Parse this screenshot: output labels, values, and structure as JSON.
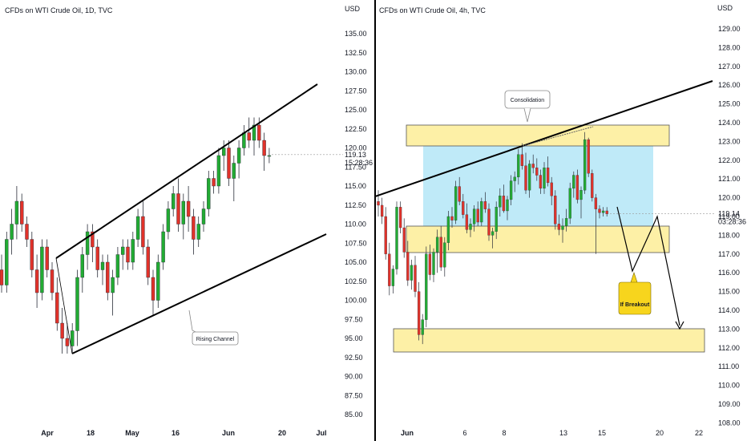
{
  "chart_data": [
    {
      "type": "candlestick",
      "title": "CFDs on WTI Crude Oil, 1D, TVC",
      "currency": "USD",
      "y_ticks": [
        "135.00",
        "132.50",
        "130.00",
        "127.50",
        "125.00",
        "122.50",
        "120.00",
        "117.50",
        "115.00",
        "112.50",
        "110.00",
        "107.50",
        "105.00",
        "102.50",
        "100.00",
        "97.50",
        "95.00",
        "92.50",
        "90.00",
        "87.50",
        "85.00"
      ],
      "x_ticks": [
        "Apr",
        "18",
        "May",
        "16",
        "Jun",
        "20",
        "Jul"
      ],
      "last_price": "119.13",
      "countdown": "15:28:36",
      "annotation": "Rising Channel",
      "candles": [
        [
          104,
          106,
          101,
          102
        ],
        [
          102,
          109,
          101,
          108
        ],
        [
          108,
          112,
          106,
          110
        ],
        [
          110,
          115,
          108,
          113
        ],
        [
          113,
          114,
          109,
          110
        ],
        [
          110,
          111,
          107,
          108
        ],
        [
          108,
          109,
          103,
          104
        ],
        [
          104,
          106,
          99,
          101
        ],
        [
          101,
          108,
          100,
          107
        ],
        [
          107,
          108,
          103,
          104
        ],
        [
          104,
          105,
          100,
          101
        ],
        [
          101,
          103,
          96,
          97
        ],
        [
          97,
          99,
          93,
          95
        ],
        [
          95,
          97,
          93,
          94
        ],
        [
          94,
          97,
          93,
          96
        ],
        [
          96,
          104,
          94,
          103
        ],
        [
          103,
          107,
          101,
          106
        ],
        [
          106,
          110,
          104,
          109
        ],
        [
          109,
          110,
          105,
          107
        ],
        [
          107,
          108,
          103,
          104
        ],
        [
          104,
          106,
          102,
          105
        ],
        [
          105,
          106,
          100,
          101
        ],
        [
          101,
          104,
          98,
          103
        ],
        [
          103,
          107,
          102,
          106
        ],
        [
          106,
          108,
          104,
          107
        ],
        [
          107,
          108,
          104,
          105
        ],
        [
          105,
          109,
          104,
          108
        ],
        [
          108,
          112,
          107,
          111
        ],
        [
          111,
          113,
          106,
          107
        ],
        [
          107,
          108,
          102,
          103
        ],
        [
          103,
          104,
          98,
          100
        ],
        [
          100,
          106,
          99,
          105
        ],
        [
          105,
          110,
          104,
          109
        ],
        [
          109,
          113,
          108,
          112
        ],
        [
          112,
          115,
          111,
          114
        ],
        [
          114,
          116,
          109,
          110
        ],
        [
          110,
          114,
          108,
          113
        ],
        [
          113,
          115,
          109,
          111
        ],
        [
          111,
          112,
          106,
          108
        ],
        [
          108,
          111,
          107,
          110
        ],
        [
          110,
          113,
          109,
          112
        ],
        [
          112,
          117,
          111,
          116
        ],
        [
          116,
          117,
          114,
          115
        ],
        [
          115,
          120,
          114,
          119
        ],
        [
          119,
          121,
          117,
          120
        ],
        [
          120,
          121,
          115,
          116
        ],
        [
          116,
          119,
          113,
          118
        ],
        [
          118,
          121,
          116,
          120
        ],
        [
          120,
          123,
          119,
          122
        ],
        [
          122,
          124,
          120,
          121
        ],
        [
          121,
          124,
          119,
          123
        ],
        [
          123,
          124,
          120,
          121
        ],
        [
          121,
          122,
          117,
          119
        ],
        [
          119,
          120,
          118,
          119
        ]
      ]
    },
    {
      "type": "candlestick",
      "title": "CFDs on WTI Crude Oil, 4h, TVC",
      "currency": "USD",
      "y_ticks": [
        "129.00",
        "128.00",
        "127.00",
        "126.00",
        "125.00",
        "124.00",
        "123.00",
        "122.00",
        "121.00",
        "120.00",
        "119.00",
        "118.00",
        "117.00",
        "116.00",
        "115.00",
        "114.00",
        "113.00",
        "112.00",
        "111.00",
        "110.00",
        "109.00",
        "108.00"
      ],
      "x_ticks": [
        "Jun",
        "6",
        "8",
        "13",
        "15",
        "20",
        "22"
      ],
      "last_price": "119.14",
      "countdown": "03:28:36",
      "annotations": [
        "Consolidation",
        "If Breakout"
      ],
      "candles": [
        [
          119.8,
          120.4,
          119.0,
          119.6
        ],
        [
          119.6,
          120.0,
          118.6,
          119.0
        ],
        [
          119.0,
          119.5,
          116.7,
          117.0
        ],
        [
          117.0,
          117.6,
          114.8,
          115.3
        ],
        [
          115.3,
          116.4,
          114.9,
          116.2
        ],
        [
          116.2,
          119.8,
          115.9,
          119.5
        ],
        [
          119.5,
          119.8,
          118.1,
          118.4
        ],
        [
          118.4,
          118.9,
          116.8,
          117.1
        ],
        [
          117.1,
          117.7,
          115.3,
          115.6
        ],
        [
          115.6,
          116.7,
          115.1,
          116.4
        ],
        [
          116.4,
          116.9,
          114.7,
          115.0
        ],
        [
          115.0,
          115.5,
          112.4,
          112.7
        ],
        [
          112.7,
          113.8,
          112.2,
          113.5
        ],
        [
          113.5,
          117.4,
          113.1,
          117.0
        ],
        [
          117.0,
          117.5,
          115.6,
          115.9
        ],
        [
          115.9,
          117.3,
          115.5,
          117.1
        ],
        [
          117.1,
          118.3,
          116.0,
          117.9
        ],
        [
          117.9,
          118.5,
          116.1,
          116.3
        ],
        [
          116.3,
          117.9,
          115.8,
          117.6
        ],
        [
          117.6,
          119.3,
          117.2,
          119.0
        ],
        [
          119.0,
          119.5,
          118.4,
          118.8
        ],
        [
          118.8,
          120.9,
          118.6,
          120.6
        ],
        [
          120.6,
          121.1,
          119.6,
          119.8
        ],
        [
          119.8,
          120.2,
          118.9,
          119.1
        ],
        [
          119.1,
          119.7,
          118.1,
          118.3
        ],
        [
          118.3,
          118.9,
          117.9,
          118.6
        ],
        [
          118.6,
          119.6,
          118.2,
          119.4
        ],
        [
          119.4,
          119.8,
          118.5,
          118.7
        ],
        [
          118.7,
          120.0,
          118.5,
          119.8
        ],
        [
          119.8,
          120.3,
          119.2,
          119.4
        ],
        [
          119.4,
          119.7,
          117.7,
          118.0
        ],
        [
          118.0,
          118.4,
          117.3,
          118.2
        ],
        [
          118.2,
          119.8,
          117.8,
          119.5
        ],
        [
          119.5,
          120.5,
          119.0,
          120.1
        ],
        [
          120.1,
          120.7,
          119.2,
          119.3
        ],
        [
          119.3,
          120.1,
          118.8,
          119.9
        ],
        [
          119.9,
          121.2,
          119.6,
          120.9
        ],
        [
          120.9,
          121.4,
          120.3,
          121.1
        ],
        [
          121.1,
          122.6,
          120.7,
          122.3
        ],
        [
          122.3,
          122.9,
          121.5,
          121.7
        ],
        [
          121.7,
          122.4,
          120.2,
          120.4
        ],
        [
          120.4,
          122.0,
          120.0,
          121.8
        ],
        [
          121.8,
          122.3,
          121.3,
          121.6
        ],
        [
          121.6,
          122.1,
          120.9,
          121.2
        ],
        [
          121.2,
          121.5,
          120.2,
          120.5
        ],
        [
          120.5,
          121.9,
          120.2,
          121.6
        ],
        [
          121.6,
          122.2,
          120.6,
          120.8
        ],
        [
          120.8,
          121.1,
          119.6,
          120.1
        ],
        [
          120.1,
          120.4,
          118.3,
          118.6
        ],
        [
          118.6,
          119.1,
          118.0,
          118.3
        ],
        [
          118.3,
          118.9,
          117.6,
          118.5
        ],
        [
          118.5,
          119.4,
          118.2,
          118.9
        ],
        [
          118.9,
          120.8,
          118.6,
          120.5
        ],
        [
          120.5,
          121.4,
          120.0,
          121.2
        ],
        [
          121.2,
          121.5,
          119.7,
          119.9
        ],
        [
          119.9,
          120.6,
          118.9,
          120.4
        ],
        [
          120.4,
          123.5,
          120.2,
          123.1
        ],
        [
          123.1,
          123.2,
          121.1,
          121.3
        ],
        [
          121.3,
          121.5,
          119.8,
          120.0
        ],
        [
          120.0,
          120.2,
          117.0,
          119.4
        ],
        [
          119.4,
          119.6,
          118.9,
          119.2
        ],
        [
          119.2,
          119.5,
          119.0,
          119.3
        ],
        [
          119.3,
          119.5,
          119.0,
          119.14
        ]
      ]
    }
  ]
}
